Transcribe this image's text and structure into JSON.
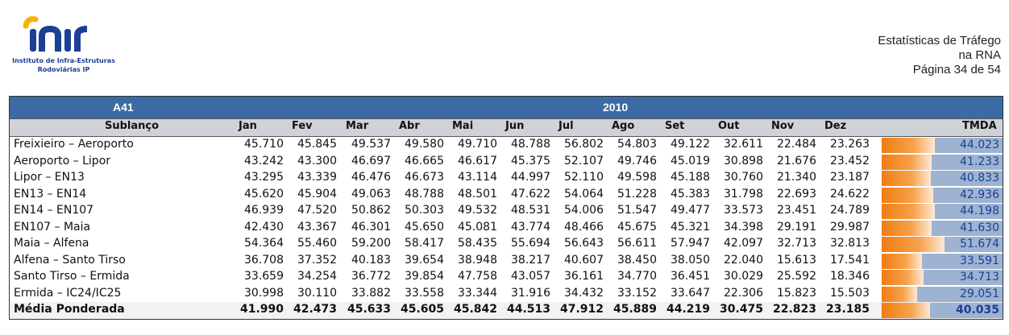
{
  "logo": {
    "wordmark": "inir",
    "line1": "Instituto de Infra-Estruturas",
    "line2": "Rodoviárias IP",
    "colors": {
      "blue": "#1b3f95",
      "yellow": "#f4b400"
    }
  },
  "header": {
    "line1": "Estatísticas de Tráfego",
    "line2": "na RNA",
    "line3": "Página 34 de 54"
  },
  "table": {
    "road": "A41",
    "year": "2010",
    "columns": [
      "Sublanço",
      "Jan",
      "Fev",
      "Mar",
      "Abr",
      "Mai",
      "Jun",
      "Jul",
      "Ago",
      "Set",
      "Out",
      "Nov",
      "Dez",
      "TMDA"
    ],
    "rows": [
      {
        "name": "Freixieiro –  Aeroporto",
        "values": [
          "45.710",
          "45.845",
          "49.537",
          "49.580",
          "49.710",
          "48.788",
          "56.802",
          "54.803",
          "49.122",
          "32.611",
          "22.484",
          "23.263"
        ],
        "tmda": "44.023",
        "tmda_value": 44023
      },
      {
        "name": "Aeroporto –  Lipor",
        "values": [
          "43.242",
          "43.300",
          "46.697",
          "46.665",
          "46.617",
          "45.375",
          "52.107",
          "49.746",
          "45.019",
          "30.898",
          "21.676",
          "23.452"
        ],
        "tmda": "41.233",
        "tmda_value": 41233
      },
      {
        "name": "Lipor –  EN13",
        "values": [
          "43.295",
          "43.339",
          "46.476",
          "46.673",
          "43.114",
          "44.997",
          "52.110",
          "49.598",
          "45.188",
          "30.760",
          "21.340",
          "23.187"
        ],
        "tmda": "40.833",
        "tmda_value": 40833
      },
      {
        "name": "EN13 –  EN14",
        "values": [
          "45.620",
          "45.904",
          "49.063",
          "48.788",
          "48.501",
          "47.622",
          "54.064",
          "51.228",
          "45.383",
          "31.798",
          "22.693",
          "24.622"
        ],
        "tmda": "42.936",
        "tmda_value": 42936
      },
      {
        "name": "EN14 –  EN107",
        "values": [
          "46.939",
          "47.520",
          "50.862",
          "50.303",
          "49.532",
          "48.531",
          "54.006",
          "51.547",
          "49.477",
          "33.573",
          "23.451",
          "24.789"
        ],
        "tmda": "44.198",
        "tmda_value": 44198
      },
      {
        "name": "EN107 –  Maia",
        "values": [
          "42.430",
          "43.367",
          "46.301",
          "45.650",
          "45.081",
          "43.774",
          "48.466",
          "45.675",
          "45.321",
          "34.398",
          "29.191",
          "29.987"
        ],
        "tmda": "41.630",
        "tmda_value": 41630
      },
      {
        "name": "Maia  –  Alfena",
        "values": [
          "54.364",
          "55.460",
          "59.200",
          "58.417",
          "58.435",
          "55.694",
          "56.643",
          "56.611",
          "57.947",
          "42.097",
          "32.713",
          "32.813"
        ],
        "tmda": "51.674",
        "tmda_value": 51674
      },
      {
        "name": "Alfena  –  Santo Tirso",
        "values": [
          "36.708",
          "37.352",
          "40.183",
          "39.654",
          "38.948",
          "38.217",
          "40.607",
          "38.450",
          "38.050",
          "22.040",
          "15.613",
          "17.541"
        ],
        "tmda": "33.591",
        "tmda_value": 33591
      },
      {
        "name": "Santo Tirso –  Ermida",
        "values": [
          "33.659",
          "34.254",
          "36.772",
          "39.854",
          "47.758",
          "43.057",
          "36.161",
          "34.770",
          "36.451",
          "30.029",
          "25.592",
          "18.346"
        ],
        "tmda": "34.713",
        "tmda_value": 34713
      },
      {
        "name": "Ermida –  IC24/IC25",
        "values": [
          "30.998",
          "30.110",
          "33.882",
          "33.558",
          "33.344",
          "31.916",
          "34.432",
          "33.152",
          "33.647",
          "22.306",
          "15.823",
          "15.503"
        ],
        "tmda": "29.051",
        "tmda_value": 29051
      }
    ],
    "average": {
      "name": "Média Ponderada",
      "values": [
        "41.990",
        "42.473",
        "45.633",
        "45.605",
        "45.842",
        "44.513",
        "47.912",
        "45.889",
        "44.219",
        "30.475",
        "22.823",
        "23.185"
      ],
      "tmda": "40.035",
      "tmda_value": 40035
    },
    "bar_scale_max": 55000,
    "colors": {
      "band": "#3b6aa5",
      "header": "#cfd2d6",
      "bar": "#f07c12",
      "bar_bg": "#9db3d1"
    }
  }
}
